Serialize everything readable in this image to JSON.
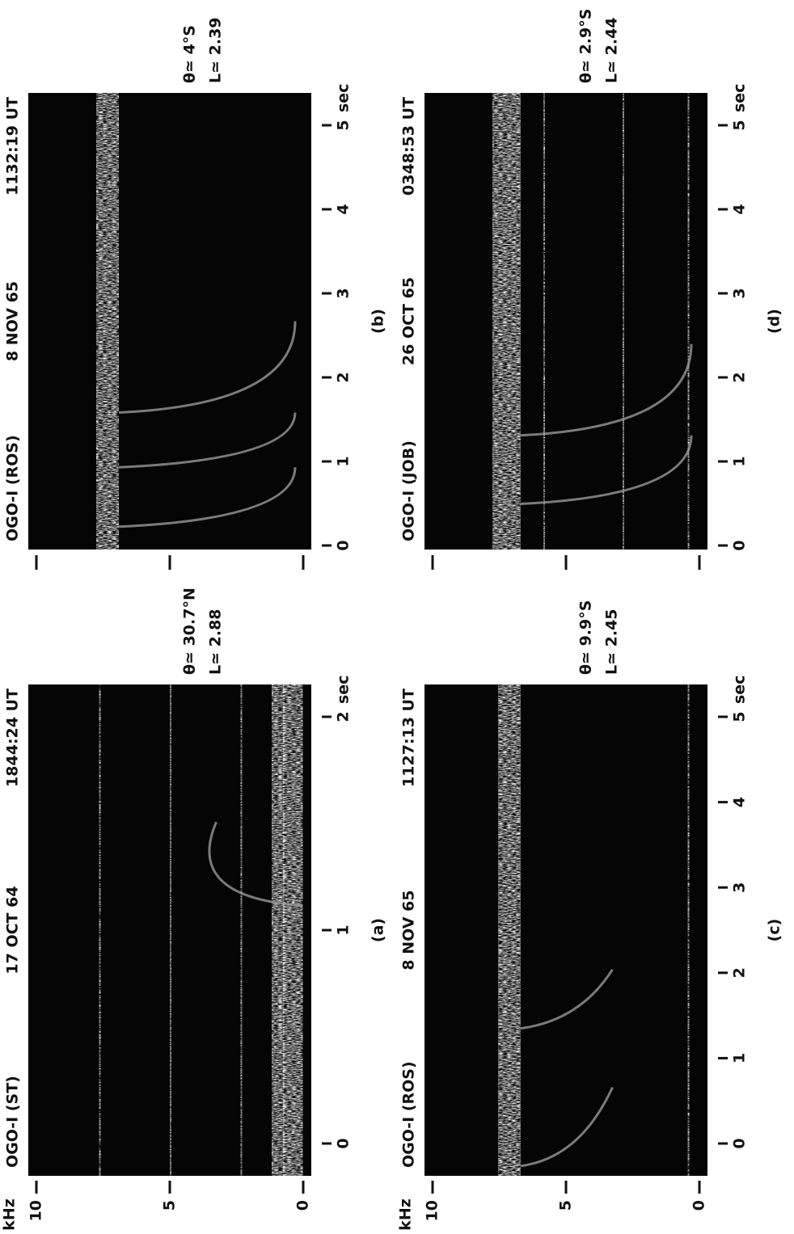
{
  "panels": [
    {
      "label": "(a)",
      "station": "OGO-I (ST)",
      "date": "17 OCT 64",
      "time": "1844:24 UT",
      "latitude": "θ≃ 30.7°N",
      "l_shell": "L≃ 2.88",
      "y_unit": "kHz",
      "yticks": [
        0,
        5,
        10
      ],
      "xticks": [
        0,
        1,
        2
      ],
      "x_unit": "sec"
    },
    {
      "label": "(b)",
      "station": "OGO-I (ROS)",
      "date": "8 NOV 65",
      "time": "1132:19 UT",
      "latitude": "θ≃ 4°S",
      "l_shell": "L≃ 2.39",
      "xticks": [
        0,
        1,
        2,
        3,
        4,
        5
      ],
      "x_unit": "sec"
    },
    {
      "label": "(c)",
      "station": "OGO-I (ROS)",
      "date": "8 NOV 65",
      "time": "1127:13 UT",
      "latitude": "θ≃ 9.9°S",
      "l_shell": "L≃ 2.45",
      "y_unit": "kHz",
      "yticks": [
        0,
        5,
        10
      ],
      "xticks": [
        0,
        1,
        2,
        3,
        4,
        5
      ],
      "x_unit": "sec"
    },
    {
      "label": "(d)",
      "station": "OGO-I (JOB)",
      "date": "26 OCT 65",
      "time": "0348:53 UT",
      "latitude": "θ≃ 2.9°S",
      "l_shell": "L≃ 2.44",
      "xticks": [
        0,
        1,
        2,
        3,
        4,
        5
      ],
      "x_unit": "sec"
    }
  ]
}
